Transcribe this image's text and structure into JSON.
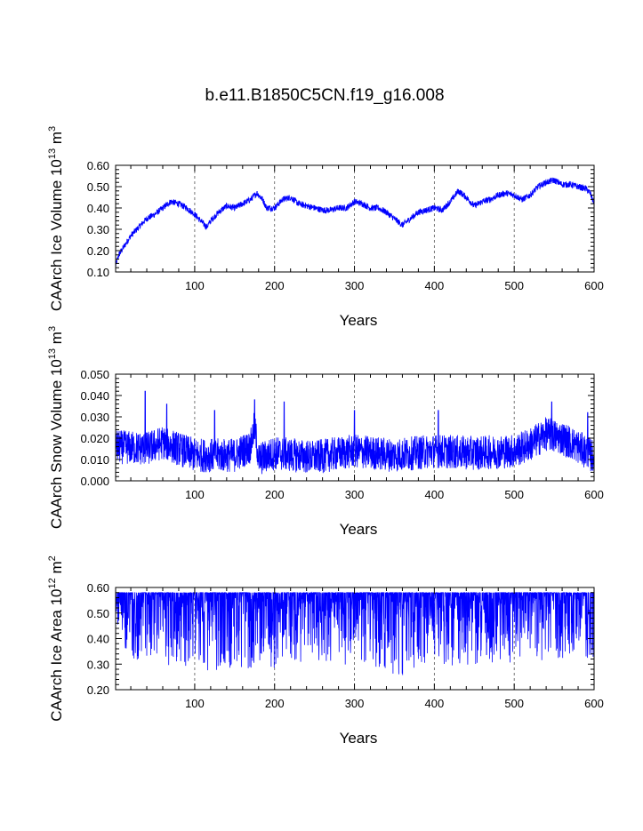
{
  "title": "b.e11.B1850C5CN.f19_g16.008",
  "colors": {
    "series": "#0000ff",
    "axis": "#000000",
    "grid": "#555555"
  },
  "chart_data": [
    {
      "type": "line",
      "title": "",
      "xlabel": "Years",
      "ylabel": "CAArch Ice Volume 10^13 m^3",
      "ylabel_parts": {
        "pre": "CAArch Ice Volume 10",
        "exp": "13",
        "mid": " m",
        "exp2": "3"
      },
      "xlim": [
        1,
        600
      ],
      "ylim": [
        0.1,
        0.6
      ],
      "xticks": [
        "100",
        "200",
        "300",
        "400",
        "500",
        "600"
      ],
      "xtick_values": [
        100,
        200,
        300,
        400,
        500,
        600
      ],
      "yticks": [
        "0.10",
        "0.20",
        "0.30",
        "0.40",
        "0.50",
        "0.60"
      ],
      "ytick_values": [
        0.1,
        0.2,
        0.3,
        0.4,
        0.5,
        0.6
      ],
      "grid": "vertical dashed at major x ticks",
      "series": [
        {
          "x": [
            1,
            5,
            10,
            20,
            30,
            40,
            50,
            60,
            70,
            80,
            90,
            100,
            110,
            115,
            120,
            130,
            140,
            150,
            160,
            170,
            178,
            185,
            190,
            200,
            210,
            220,
            230,
            240,
            250,
            260,
            270,
            280,
            290,
            300,
            310,
            320,
            330,
            340,
            350,
            360,
            370,
            380,
            390,
            400,
            410,
            420,
            430,
            440,
            450,
            460,
            470,
            480,
            490,
            500,
            510,
            520,
            530,
            540,
            550,
            560,
            570,
            580,
            590,
            595,
            600
          ],
          "values": [
            0.13,
            0.18,
            0.21,
            0.27,
            0.31,
            0.35,
            0.37,
            0.4,
            0.43,
            0.42,
            0.4,
            0.37,
            0.33,
            0.31,
            0.34,
            0.38,
            0.41,
            0.4,
            0.42,
            0.44,
            0.47,
            0.44,
            0.4,
            0.4,
            0.44,
            0.45,
            0.42,
            0.41,
            0.4,
            0.39,
            0.39,
            0.4,
            0.4,
            0.43,
            0.42,
            0.4,
            0.4,
            0.38,
            0.35,
            0.32,
            0.35,
            0.38,
            0.39,
            0.4,
            0.39,
            0.43,
            0.48,
            0.45,
            0.41,
            0.43,
            0.44,
            0.46,
            0.47,
            0.46,
            0.44,
            0.46,
            0.5,
            0.52,
            0.53,
            0.51,
            0.51,
            0.5,
            0.49,
            0.47,
            0.42
          ],
          "noise": 0.03
        }
      ]
    },
    {
      "type": "line",
      "title": "",
      "xlabel": "Years",
      "ylabel": "CAArch Snow Volume 10^13 m^3",
      "ylabel_parts": {
        "pre": "CAArch Snow Volume 10",
        "exp": "13",
        "mid": " m",
        "exp2": "3"
      },
      "xlim": [
        1,
        600
      ],
      "ylim": [
        0.0,
        0.05
      ],
      "xticks": [
        "100",
        "200",
        "300",
        "400",
        "500",
        "600"
      ],
      "xtick_values": [
        100,
        200,
        300,
        400,
        500,
        600
      ],
      "yticks": [
        "0.000",
        "0.010",
        "0.020",
        "0.030",
        "0.040",
        "0.050"
      ],
      "ytick_values": [
        0.0,
        0.01,
        0.02,
        0.03,
        0.04,
        0.05
      ],
      "grid": "vertical dashed at major x ticks",
      "series": [
        {
          "x": [
            1,
            40,
            60,
            100,
            150,
            170,
            175,
            180,
            200,
            250,
            300,
            350,
            400,
            450,
            500,
            520,
            540,
            560,
            580,
            600
          ],
          "values": [
            0.016,
            0.015,
            0.018,
            0.012,
            0.012,
            0.016,
            0.026,
            0.01,
            0.013,
            0.011,
            0.014,
            0.012,
            0.014,
            0.013,
            0.014,
            0.017,
            0.022,
            0.02,
            0.016,
            0.011
          ],
          "noise": 0.016,
          "spikes": [
            [
              38,
              0.042
            ],
            [
              65,
              0.036
            ],
            [
              125,
              0.033
            ],
            [
              175,
              0.038
            ],
            [
              212,
              0.037
            ],
            [
              300,
              0.033
            ],
            [
              405,
              0.033
            ],
            [
              547,
              0.037
            ],
            [
              592,
              0.032
            ]
          ]
        }
      ]
    },
    {
      "type": "line",
      "title": "",
      "xlabel": "Years",
      "ylabel": "CAArch Ice Area 10^12 m^2",
      "ylabel_parts": {
        "pre": "CAArch Ice Area 10",
        "exp": "12",
        "mid": " m",
        "exp2": "2"
      },
      "xlim": [
        1,
        600
      ],
      "ylim": [
        0.2,
        0.6
      ],
      "xticks": [
        "100",
        "200",
        "300",
        "400",
        "500",
        "600"
      ],
      "xtick_values": [
        100,
        200,
        300,
        400,
        500,
        600
      ],
      "yticks": [
        "0.20",
        "0.30",
        "0.40",
        "0.50",
        "0.60"
      ],
      "ytick_values": [
        0.2,
        0.3,
        0.4,
        0.5,
        0.6
      ],
      "grid": "vertical dashed at major x ticks",
      "series": [
        {
          "x": [
            1,
            100,
            120,
            200,
            300,
            360,
            400,
            500,
            600
          ],
          "values": [
            0.58,
            0.58,
            0.58,
            0.58,
            0.58,
            0.58,
            0.58,
            0.58,
            0.58
          ],
          "dips_min": [
            [
              1,
              0.37
            ],
            [
              20,
              0.33
            ],
            [
              110,
              0.28
            ],
            [
              115,
              0.27
            ],
            [
              200,
              0.29
            ],
            [
              250,
              0.3
            ],
            [
              300,
              0.31
            ],
            [
              360,
              0.25
            ],
            [
              380,
              0.3
            ],
            [
              430,
              0.3
            ],
            [
              520,
              0.31
            ],
            [
              600,
              0.33
            ]
          ]
        }
      ]
    }
  ]
}
